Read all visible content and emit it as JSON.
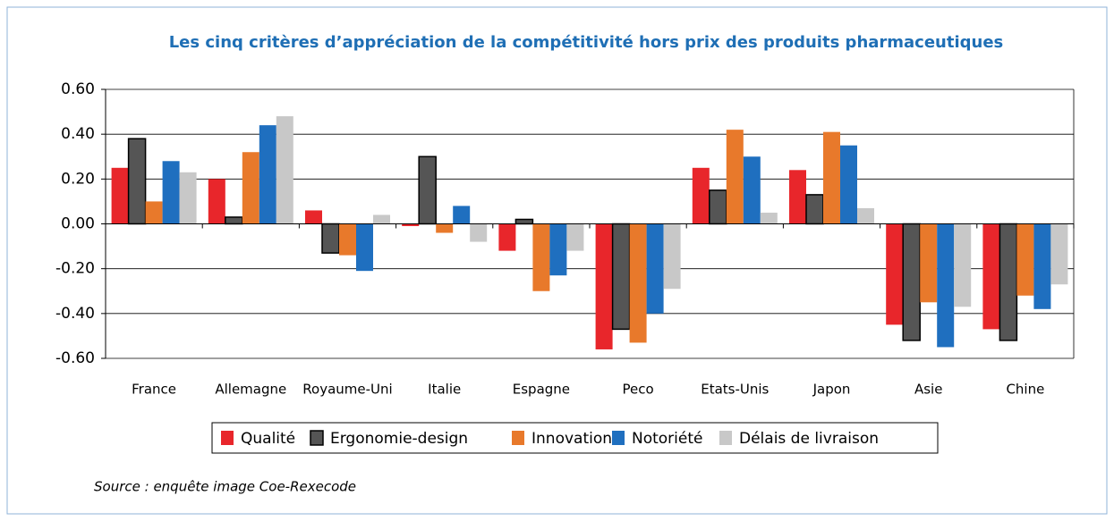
{
  "chart_data": {
    "type": "bar",
    "title": "Les cinq critères d’appréciation de la compétitivité hors prix des produits pharmaceutiques",
    "source": "Source : enquête image Coe-Rexecode",
    "categories": [
      "France",
      "Allemagne",
      "Royaume-Uni",
      "Italie",
      "Espagne",
      "Peco",
      "Etats-Unis",
      "Japon",
      "Asie",
      "Chine"
    ],
    "series": [
      {
        "name": "Qualité",
        "color": "#e8262b",
        "values": [
          0.25,
          0.2,
          0.06,
          -0.01,
          -0.12,
          -0.56,
          0.25,
          0.24,
          -0.45,
          -0.47
        ]
      },
      {
        "name": "Ergonomie-design",
        "color": "#555555",
        "values": [
          0.38,
          0.03,
          -0.13,
          0.3,
          0.02,
          -0.47,
          0.15,
          0.13,
          -0.52,
          -0.52
        ]
      },
      {
        "name": "Innovation",
        "color": "#e8792b",
        "values": [
          0.1,
          0.32,
          -0.14,
          -0.04,
          -0.3,
          -0.53,
          0.42,
          0.41,
          -0.35,
          -0.32
        ]
      },
      {
        "name": "Notoriété",
        "color": "#1f6fbf",
        "values": [
          0.28,
          0.44,
          -0.21,
          0.08,
          -0.23,
          -0.4,
          0.3,
          0.35,
          -0.55,
          -0.38
        ]
      },
      {
        "name": "Délais de livraison",
        "color": "#c8c8c8",
        "values": [
          0.23,
          0.48,
          0.04,
          -0.08,
          -0.12,
          -0.29,
          0.05,
          0.07,
          -0.37,
          -0.27
        ]
      }
    ],
    "ylim": [
      -0.6,
      0.6
    ],
    "yticks": [
      {
        "value": 0.6,
        "label": "0.60"
      },
      {
        "value": 0.4,
        "label": "0.40"
      },
      {
        "value": 0.2,
        "label": "0.20"
      },
      {
        "value": 0,
        "label": "0.00"
      },
      {
        "value": -0.2,
        "label": "-0.20"
      },
      {
        "value": -0.4,
        "label": "-0.40"
      },
      {
        "value": -0.6,
        "label": "-0.60"
      }
    ],
    "grid": true
  }
}
